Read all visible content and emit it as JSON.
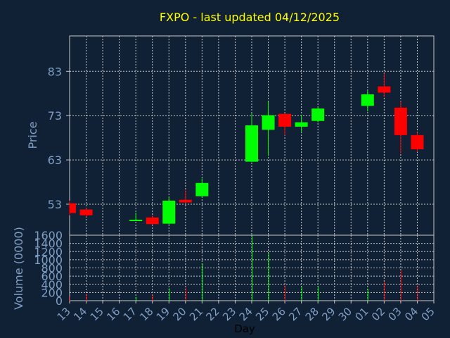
{
  "chart_data": [
    {
      "type": "candlestick",
      "title": "FXPO - last updated 04/12/2025",
      "ylabel": "Price",
      "ylim": [
        46,
        91
      ],
      "yticks": [
        "53",
        "63",
        "73",
        "83"
      ],
      "grid": true,
      "categories": [
        "13",
        "14",
        "15",
        "16",
        "17",
        "18",
        "19",
        "20",
        "21",
        "22",
        "23",
        "24",
        "25",
        "26",
        "27",
        "28",
        "29",
        "30",
        "01",
        "02",
        "03",
        "04",
        "05"
      ],
      "candles": [
        {
          "day": "13",
          "open": 53.2,
          "close": 51.0,
          "high": 53.8,
          "low": 50.5
        },
        {
          "day": "14",
          "open": 51.8,
          "close": 50.5,
          "high": 52.1,
          "low": 50.2
        },
        {
          "day": "17",
          "open": 49.3,
          "close": 49.5,
          "high": 51.1,
          "low": 49.2
        },
        {
          "day": "18",
          "open": 50.0,
          "close": 48.5,
          "high": 50.5,
          "low": 48.3
        },
        {
          "day": "19",
          "open": 48.6,
          "close": 53.8,
          "high": 54.5,
          "low": 48.4
        },
        {
          "day": "20",
          "open": 54.0,
          "close": 53.4,
          "high": 56.2,
          "low": 53.1
        },
        {
          "day": "21",
          "open": 54.8,
          "close": 57.8,
          "high": 58.8,
          "low": 54.5
        },
        {
          "day": "24",
          "open": 62.6,
          "close": 70.8,
          "high": 73.5,
          "low": 62.5
        },
        {
          "day": "25",
          "open": 69.8,
          "close": 73.1,
          "high": 76.1,
          "low": 63.9
        },
        {
          "day": "26",
          "open": 73.4,
          "close": 70.5,
          "high": 73.5,
          "low": 68.5
        },
        {
          "day": "27",
          "open": 70.5,
          "close": 71.5,
          "high": 73.2,
          "low": 69.3
        },
        {
          "day": "28",
          "open": 71.8,
          "close": 74.6,
          "high": 75.0,
          "low": 71.5
        },
        {
          "day": "01",
          "open": 75.2,
          "close": 77.8,
          "high": 78.8,
          "low": 74.0
        },
        {
          "day": "02",
          "open": 79.6,
          "close": 78.2,
          "high": 82.5,
          "low": 77.2
        },
        {
          "day": "03",
          "open": 74.8,
          "close": 68.6,
          "high": 76.2,
          "low": 64.5
        },
        {
          "day": "04",
          "open": 68.6,
          "close": 65.4,
          "high": 69.2,
          "low": 64.8
        }
      ],
      "up_color": "#00ff00",
      "down_color": "#ff0000"
    },
    {
      "type": "bar",
      "ylabel": "Volume (0000)",
      "ylim": [
        0,
        1600
      ],
      "yticks": [
        "0",
        "200",
        "400",
        "600",
        "800",
        "1000",
        "1200",
        "1400",
        "1600"
      ],
      "xlabel": "Day",
      "categories": [
        "13",
        "14",
        "15",
        "16",
        "17",
        "18",
        "19",
        "20",
        "21",
        "22",
        "23",
        "24",
        "25",
        "26",
        "27",
        "28",
        "29",
        "30",
        "01",
        "02",
        "03",
        "04",
        "05"
      ],
      "volumes": [
        {
          "day": "13",
          "value": 100,
          "dir": "down"
        },
        {
          "day": "14",
          "value": 170,
          "dir": "down"
        },
        {
          "day": "17",
          "value": 90,
          "dir": "up"
        },
        {
          "day": "18",
          "value": 150,
          "dir": "down"
        },
        {
          "day": "19",
          "value": 300,
          "dir": "up"
        },
        {
          "day": "20",
          "value": 310,
          "dir": "down"
        },
        {
          "day": "21",
          "value": 900,
          "dir": "up"
        },
        {
          "day": "24",
          "value": 1590,
          "dir": "up"
        },
        {
          "day": "25",
          "value": 1170,
          "dir": "up"
        },
        {
          "day": "26",
          "value": 370,
          "dir": "down"
        },
        {
          "day": "27",
          "value": 340,
          "dir": "up"
        },
        {
          "day": "28",
          "value": 350,
          "dir": "up"
        },
        {
          "day": "01",
          "value": 290,
          "dir": "up"
        },
        {
          "day": "02",
          "value": 470,
          "dir": "down"
        },
        {
          "day": "03",
          "value": 740,
          "dir": "down"
        },
        {
          "day": "04",
          "value": 370,
          "dir": "down"
        }
      ]
    }
  ]
}
